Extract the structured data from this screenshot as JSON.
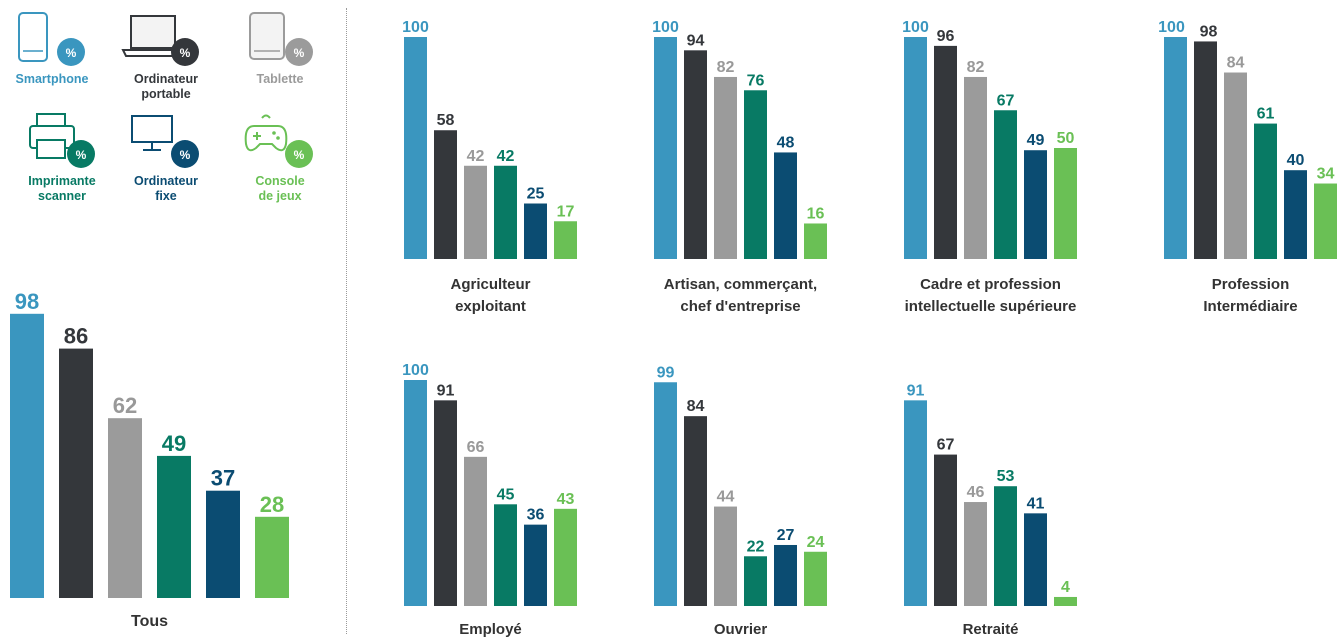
{
  "colors": {
    "smartphone": "#3a96bf",
    "ordinateur_portable": "#34373b",
    "tablette": "#9b9b9b",
    "imprimante_scanner": "#087a64",
    "ordinateur_fixe": "#0b4c72",
    "console_de_jeux": "#6ac055"
  },
  "legend": [
    {
      "key": "smartphone",
      "lines": [
        "Smartphone"
      ],
      "badge": "%",
      "icon": "smartphone-icon"
    },
    {
      "key": "ordinateur_portable",
      "lines": [
        "Ordinateur",
        "portable"
      ],
      "badge": "%",
      "icon": "laptop-icon"
    },
    {
      "key": "tablette",
      "lines": [
        "Tablette"
      ],
      "badge": "%",
      "icon": "tablet-icon"
    },
    {
      "key": "imprimante_scanner",
      "lines": [
        "Imprimante",
        "scanner"
      ],
      "badge": "%",
      "icon": "printer-icon"
    },
    {
      "key": "ordinateur_fixe",
      "lines": [
        "Ordinateur",
        "fixe"
      ],
      "badge": "%",
      "icon": "desktop-icon"
    },
    {
      "key": "console_de_jeux",
      "lines": [
        "Console",
        "de jeux"
      ],
      "badge": "%",
      "icon": "gamepad-icon"
    }
  ],
  "chart_data": [
    {
      "type": "bar",
      "group": [
        "Tous"
      ],
      "series": [
        "Smartphone",
        "Ordinateur portable",
        "Tablette",
        "Imprimante scanner",
        "Ordinateur fixe",
        "Console de jeux"
      ],
      "values": [
        98,
        86,
        62,
        49,
        37,
        28
      ]
    },
    {
      "type": "bar",
      "group": [
        "Agriculteur",
        "exploitant"
      ],
      "series": [
        "Smartphone",
        "Ordinateur portable",
        "Tablette",
        "Imprimante scanner",
        "Ordinateur fixe",
        "Console de jeux"
      ],
      "values": [
        100,
        58,
        42,
        42,
        25,
        17
      ]
    },
    {
      "type": "bar",
      "group": [
        "Artisan, commerçant,",
        "chef d'entreprise"
      ],
      "series": [
        "Smartphone",
        "Ordinateur portable",
        "Tablette",
        "Imprimante scanner",
        "Ordinateur fixe",
        "Console de jeux"
      ],
      "values": [
        100,
        94,
        82,
        76,
        48,
        16
      ]
    },
    {
      "type": "bar",
      "group": [
        "Cadre et profession",
        "intellectuelle supérieure"
      ],
      "series": [
        "Smartphone",
        "Ordinateur portable",
        "Tablette",
        "Imprimante scanner",
        "Ordinateur fixe",
        "Console de jeux"
      ],
      "values": [
        100,
        96,
        82,
        67,
        49,
        50
      ]
    },
    {
      "type": "bar",
      "group": [
        "Profession",
        "Intermédiaire"
      ],
      "series": [
        "Smartphone",
        "Ordinateur portable",
        "Tablette",
        "Imprimante scanner",
        "Ordinateur fixe",
        "Console de jeux"
      ],
      "values": [
        100,
        98,
        84,
        61,
        40,
        34
      ]
    },
    {
      "type": "bar",
      "group": [
        "Employé"
      ],
      "series": [
        "Smartphone",
        "Ordinateur portable",
        "Tablette",
        "Imprimante scanner",
        "Ordinateur fixe",
        "Console de jeux"
      ],
      "values": [
        100,
        91,
        66,
        45,
        36,
        43
      ]
    },
    {
      "type": "bar",
      "group": [
        "Ouvrier"
      ],
      "series": [
        "Smartphone",
        "Ordinateur portable",
        "Tablette",
        "Imprimante scanner",
        "Ordinateur fixe",
        "Console de jeux"
      ],
      "values": [
        99,
        84,
        44,
        22,
        27,
        24
      ]
    },
    {
      "type": "bar",
      "group": [
        "Retraité"
      ],
      "series": [
        "Smartphone",
        "Ordinateur portable",
        "Tablette",
        "Imprimante scanner",
        "Ordinateur fixe",
        "Console de jeux"
      ],
      "values": [
        91,
        67,
        46,
        53,
        41,
        4
      ]
    }
  ]
}
